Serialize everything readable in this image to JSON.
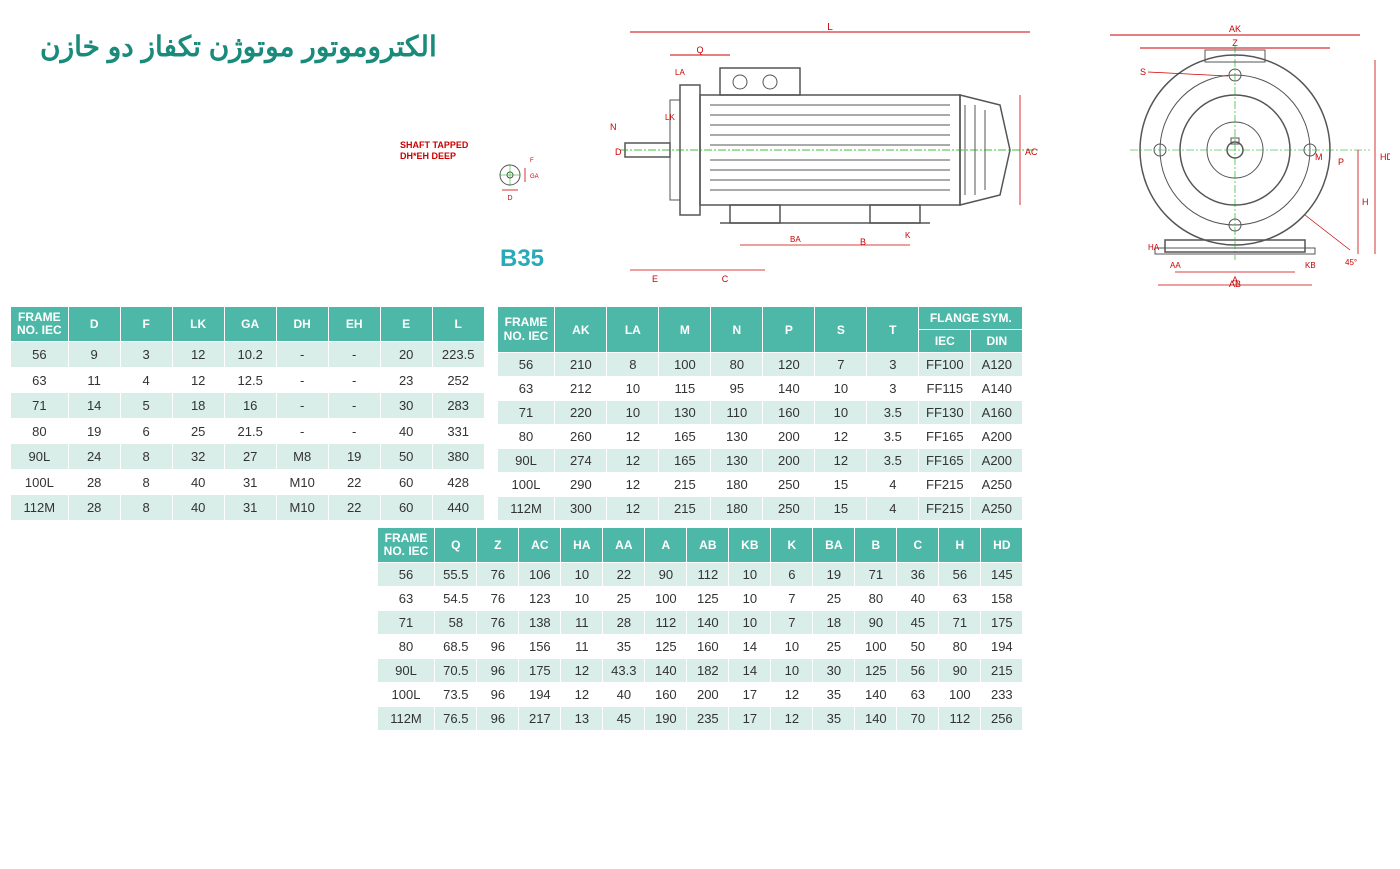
{
  "title": "الکتروموتور موتوژن تکفاز دو خازن",
  "shaft_label_1": "SHAFT TAPPED",
  "shaft_label_2": "DH*EH DEEP",
  "model_label": "B35",
  "colors": {
    "header_bg": "#4db8a8",
    "header_text": "#ffffff",
    "row_alt": "#d9ede9",
    "title": "#1a8a7a",
    "b35": "#2aa9b8",
    "dim_lines": "#cc0000",
    "motor_body": "#555555"
  },
  "table1": {
    "headers": [
      "FRAME NO. IEC",
      "D",
      "F",
      "LK",
      "GA",
      "DH",
      "EH",
      "E",
      "L"
    ],
    "rows": [
      [
        "56",
        "9",
        "3",
        "12",
        "10.2",
        "-",
        "-",
        "20",
        "223.5"
      ],
      [
        "63",
        "11",
        "4",
        "12",
        "12.5",
        "-",
        "-",
        "23",
        "252"
      ],
      [
        "71",
        "14",
        "5",
        "18",
        "16",
        "-",
        "-",
        "30",
        "283"
      ],
      [
        "80",
        "19",
        "6",
        "25",
        "21.5",
        "-",
        "-",
        "40",
        "331"
      ],
      [
        "90L",
        "24",
        "8",
        "32",
        "27",
        "M8",
        "19",
        "50",
        "380"
      ],
      [
        "100L",
        "28",
        "8",
        "40",
        "31",
        "M10",
        "22",
        "60",
        "428"
      ],
      [
        "112M",
        "28",
        "8",
        "40",
        "31",
        "M10",
        "22",
        "60",
        "440"
      ]
    ]
  },
  "table2": {
    "top_headers": [
      "FRAME NO. IEC",
      "AK",
      "LA",
      "M",
      "N",
      "P",
      "S",
      "T"
    ],
    "flange_header": "FLANGE SYM.",
    "flange_sub": [
      "IEC",
      "DIN"
    ],
    "rows": [
      [
        "56",
        "210",
        "8",
        "100",
        "80",
        "120",
        "7",
        "3",
        "FF100",
        "A120"
      ],
      [
        "63",
        "212",
        "10",
        "115",
        "95",
        "140",
        "10",
        "3",
        "FF115",
        "A140"
      ],
      [
        "71",
        "220",
        "10",
        "130",
        "110",
        "160",
        "10",
        "3.5",
        "FF130",
        "A160"
      ],
      [
        "80",
        "260",
        "12",
        "165",
        "130",
        "200",
        "12",
        "3.5",
        "FF165",
        "A200"
      ],
      [
        "90L",
        "274",
        "12",
        "165",
        "130",
        "200",
        "12",
        "3.5",
        "FF165",
        "A200"
      ],
      [
        "100L",
        "290",
        "12",
        "215",
        "180",
        "250",
        "15",
        "4",
        "FF215",
        "A250"
      ],
      [
        "112M",
        "300",
        "12",
        "215",
        "180",
        "250",
        "15",
        "4",
        "FF215",
        "A250"
      ]
    ]
  },
  "table3": {
    "headers": [
      "FRAME NO. IEC",
      "Q",
      "Z",
      "AC",
      "HA",
      "AA",
      "A",
      "AB",
      "KB",
      "K",
      "BA",
      "B",
      "C",
      "H",
      "HD"
    ],
    "rows": [
      [
        "56",
        "55.5",
        "76",
        "106",
        "10",
        "22",
        "90",
        "112",
        "10",
        "6",
        "19",
        "71",
        "36",
        "56",
        "145"
      ],
      [
        "63",
        "54.5",
        "76",
        "123",
        "10",
        "25",
        "100",
        "125",
        "10",
        "7",
        "25",
        "80",
        "40",
        "63",
        "158"
      ],
      [
        "71",
        "58",
        "76",
        "138",
        "11",
        "28",
        "112",
        "140",
        "10",
        "7",
        "18",
        "90",
        "45",
        "71",
        "175"
      ],
      [
        "80",
        "68.5",
        "96",
        "156",
        "11",
        "35",
        "125",
        "160",
        "14",
        "10",
        "25",
        "100",
        "50",
        "80",
        "194"
      ],
      [
        "90L",
        "70.5",
        "96",
        "175",
        "12",
        "43.3",
        "140",
        "182",
        "14",
        "10",
        "30",
        "125",
        "56",
        "90",
        "215"
      ],
      [
        "100L",
        "73.5",
        "96",
        "194",
        "12",
        "40",
        "160",
        "200",
        "17",
        "12",
        "35",
        "140",
        "63",
        "100",
        "233"
      ],
      [
        "112M",
        "76.5",
        "96",
        "217",
        "13",
        "45",
        "190",
        "235",
        "17",
        "12",
        "35",
        "140",
        "70",
        "112",
        "256"
      ]
    ]
  },
  "dim_labels_side": [
    "L",
    "Q",
    "LA",
    "LK",
    "B",
    "BA",
    "K",
    "E",
    "C",
    "AC",
    "N",
    "D",
    "F",
    "GA"
  ],
  "dim_labels_front": [
    "AK",
    "Z",
    "S",
    "M",
    "P",
    "H",
    "HD",
    "HA",
    "AA",
    "A",
    "AB",
    "KB",
    "45°"
  ]
}
